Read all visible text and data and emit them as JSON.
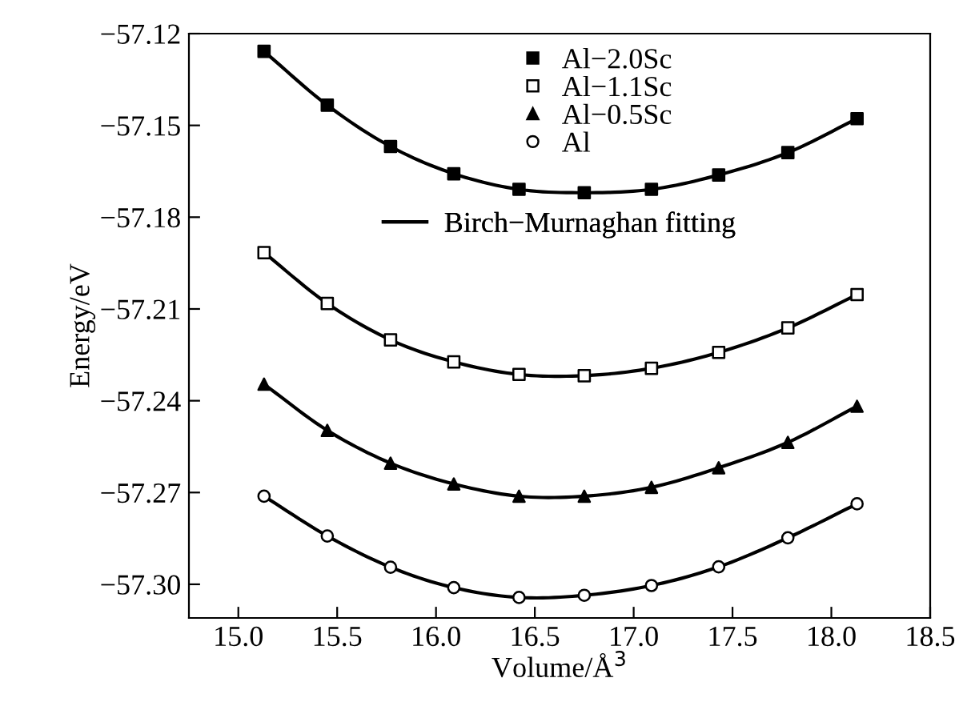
{
  "chart_data": {
    "type": "scatter",
    "xlabel": "Volume/Å$^{3}$",
    "ylabel": "Energy/eV",
    "x": [
      15.13,
      15.45,
      15.77,
      16.09,
      16.42,
      16.75,
      17.09,
      17.43,
      17.78,
      18.13
    ],
    "series": [
      {
        "name": "Al−2.0Sc",
        "color": "#000000",
        "marker": "square",
        "values": [
          -57.1258,
          -57.1434,
          -57.1569,
          -57.1658,
          -57.1709,
          -57.172,
          -57.1709,
          -57.1662,
          -57.1589,
          -57.1478
        ]
      },
      {
        "name": "Al−1.1Sc",
        "color": "#ffffff",
        "marker": "square",
        "values": [
          -57.1916,
          -57.2082,
          -57.2201,
          -57.2273,
          -57.2314,
          -57.2318,
          -57.2294,
          -57.2242,
          -57.2162,
          -57.2053
        ]
      },
      {
        "name": "Al−0.5Sc",
        "color": "#000000",
        "marker": "triangle",
        "values": [
          -57.2346,
          -57.2497,
          -57.2604,
          -57.2672,
          -57.2712,
          -57.2712,
          -57.2683,
          -57.2619,
          -57.2536,
          -57.2418
        ]
      },
      {
        "name": "Al",
        "color": "#ffffff",
        "marker": "circle",
        "values": [
          -57.2712,
          -57.2842,
          -57.2944,
          -57.3011,
          -57.3043,
          -57.3036,
          -57.3004,
          -57.2943,
          -57.2848,
          -57.2737
        ]
      },
      {
        "type": "line",
        "name": "Birch−Murnaghan fitting",
        "color": "#000000",
        "values": [
          -57.1258,
          -57.1434,
          -57.1569,
          -57.1658,
          -57.1709,
          -57.172,
          -57.1709,
          -57.1662,
          -57.1589,
          -57.1478
        ]
      },
      {
        "type": "line",
        "color": "#000000",
        "values": [
          -57.1916,
          -57.2082,
          -57.2201,
          -57.2273,
          -57.2314,
          -57.2318,
          -57.2294,
          -57.2242,
          -57.2162,
          -57.2053
        ]
      },
      {
        "type": "line",
        "color": "#000000",
        "values": [
          -57.2346,
          -57.2497,
          -57.2604,
          -57.2672,
          -57.2712,
          -57.2712,
          -57.2683,
          -57.2619,
          -57.2536,
          -57.2418
        ]
      },
      {
        "type": "line",
        "color": "#000000",
        "values": [
          -57.2712,
          -57.2842,
          -57.2944,
          -57.3011,
          -57.3043,
          -57.3036,
          -57.3004,
          -57.2943,
          -57.2848,
          -57.2737
        ]
      }
    ],
    "xlim": [
      14.75,
      18.5
    ],
    "xticks": [
      {
        "value": 15.0,
        "label": "15.0"
      },
      {
        "value": 15.5,
        "label": "15.5"
      },
      {
        "value": 16.0,
        "label": "16.0"
      },
      {
        "value": 16.5,
        "label": "16.5"
      },
      {
        "value": 17.0,
        "label": "17.0"
      },
      {
        "value": 17.5,
        "label": "17.5"
      },
      {
        "value": 18.0,
        "label": "18.0"
      },
      {
        "value": 18.5,
        "label": "18.5"
      }
    ],
    "ylim": [
      -57.311,
      -57.12
    ],
    "yticks": [
      {
        "value": -57.12,
        "label": "−57.12"
      },
      {
        "value": -57.15,
        "label": "−57.15"
      },
      {
        "value": -57.18,
        "label": "−57.18"
      },
      {
        "value": -57.21,
        "label": "−57.21"
      },
      {
        "value": -57.24,
        "label": "−57.24"
      },
      {
        "value": -57.27,
        "label": "−57.27"
      },
      {
        "value": -57.3,
        "label": "−57.30"
      }
    ],
    "grid": false,
    "legend": "top",
    "line_style": "solid"
  }
}
